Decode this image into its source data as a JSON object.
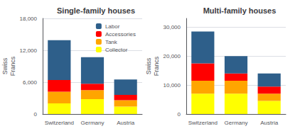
{
  "chart_data": [
    {
      "type": "bar",
      "title": "Single-family houses",
      "ylabel": "Swiss\nFrancs",
      "categories": [
        "Switzerland",
        "Germany",
        "Austria"
      ],
      "stacked": true,
      "grid": true,
      "legend": "upper right",
      "series": [
        {
          "name": "Collector",
          "color": "#FFFF00",
          "values": [
            2000,
            2800,
            1400
          ]
        },
        {
          "name": "Tank",
          "color": "#FFA500",
          "values": [
            2200,
            1700,
            1200
          ]
        },
        {
          "name": "Accessories",
          "color": "#FF0000",
          "values": [
            2200,
            1200,
            1000
          ]
        },
        {
          "name": "Labor",
          "color": "#2E5F8A",
          "values": [
            7500,
            5000,
            2900
          ]
        }
      ],
      "ylim": [
        0,
        18000
      ],
      "yticks": [
        0,
        {
          "value": 6000,
          "label": "6,000"
        },
        {
          "value": 12000,
          "label": "12,000"
        },
        {
          "value": 18000,
          "label": "18,000"
        }
      ]
    },
    {
      "type": "bar",
      "title": "Multi-family houses",
      "ylabel": "Swiss\nFrancs",
      "categories": [
        "Switzerland",
        "Germany",
        "Austria"
      ],
      "stacked": true,
      "grid": true,
      "series": [
        {
          "name": "Collector",
          "color": "#FFFF00",
          "values": [
            7000,
            7000,
            4500
          ]
        },
        {
          "name": "Tank",
          "color": "#FFA500",
          "values": [
            4500,
            4500,
            2500
          ]
        },
        {
          "name": "Accessories",
          "color": "#FF0000",
          "values": [
            6000,
            2500,
            2500
          ]
        },
        {
          "name": "Labor",
          "color": "#2E5F8A",
          "values": [
            11000,
            6000,
            4500
          ]
        }
      ],
      "ylim": [
        0,
        33000
      ],
      "yticks": [
        0,
        {
          "value": 10000,
          "label": "10,000"
        },
        {
          "value": 20000,
          "label": "20,000"
        },
        {
          "value": 30000,
          "label": "30,000"
        }
      ]
    }
  ]
}
